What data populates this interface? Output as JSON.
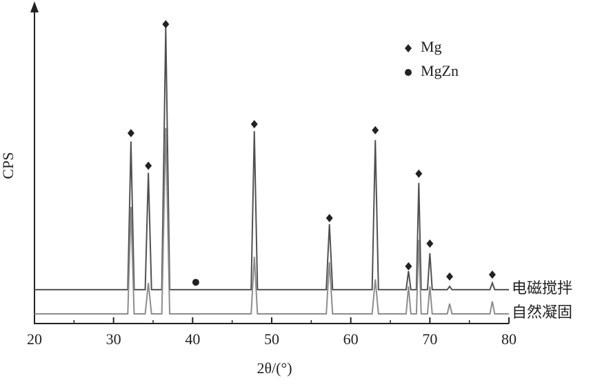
{
  "chart_data": {
    "type": "line",
    "ylabel": "CPS",
    "xlabel": "2θ/(°)",
    "xlim": [
      20,
      80
    ],
    "xticks": [
      20,
      30,
      40,
      50,
      60,
      70,
      80
    ],
    "xminorticks": [
      25,
      35,
      45,
      55,
      65,
      75
    ],
    "ylim": [
      0,
      100
    ],
    "x": [
      20,
      31.8,
      32.2,
      32.6,
      34.0,
      34.4,
      34.8,
      36.1,
      36.6,
      37.1,
      47.4,
      47.8,
      48.2,
      56.9,
      57.3,
      57.7,
      62.7,
      63.1,
      63.5,
      67.0,
      67.3,
      67.6,
      68.3,
      68.6,
      68.9,
      69.7,
      70.0,
      70.3,
      72.2,
      72.5,
      72.8,
      77.6,
      77.9,
      78.2,
      80
    ],
    "series": [
      {
        "name": "电磁搅拌",
        "color": "#505050",
        "values": [
          10.4,
          10.4,
          56.8,
          10.4,
          10.4,
          47,
          10.4,
          10.4,
          92.4,
          10.4,
          10.4,
          60,
          10.4,
          10.4,
          30.9,
          10.4,
          10.4,
          57.2,
          10.4,
          10.4,
          16.2,
          10.4,
          10.4,
          43.8,
          10.4,
          10.4,
          21.8,
          10.4,
          10.4,
          11.4,
          10.4,
          10.4,
          12.5,
          10.4,
          10.4
        ]
      },
      {
        "name": "自然凝固",
        "color": "#8c8c8c",
        "values": [
          2.8,
          2.8,
          36.3,
          2.8,
          2.8,
          12.5,
          2.8,
          2.8,
          61,
          2.8,
          2.8,
          20.7,
          2.8,
          2.8,
          19,
          2.8,
          2.8,
          13.6,
          2.8,
          2.8,
          11.4,
          2.8,
          2.8,
          26,
          2.8,
          2.8,
          11.4,
          2.8,
          2.8,
          6,
          2.8,
          2.8,
          6.7,
          2.8,
          2.8
        ]
      }
    ],
    "markers": [
      {
        "name": "Mg",
        "shape": "diamond",
        "x": [
          32.2,
          34.4,
          36.6,
          47.8,
          57.3,
          63.1,
          67.3,
          68.6,
          70.0,
          72.5,
          77.9
        ],
        "y": [
          59.4,
          49.2,
          93.5,
          62.2,
          32.8,
          60.3,
          17.7,
          46.7,
          24.8,
          14.5,
          15.1
        ]
      },
      {
        "name": "MgZn",
        "shape": "circle",
        "x": [
          40.4
        ],
        "y": [
          12.7
        ]
      }
    ]
  }
}
